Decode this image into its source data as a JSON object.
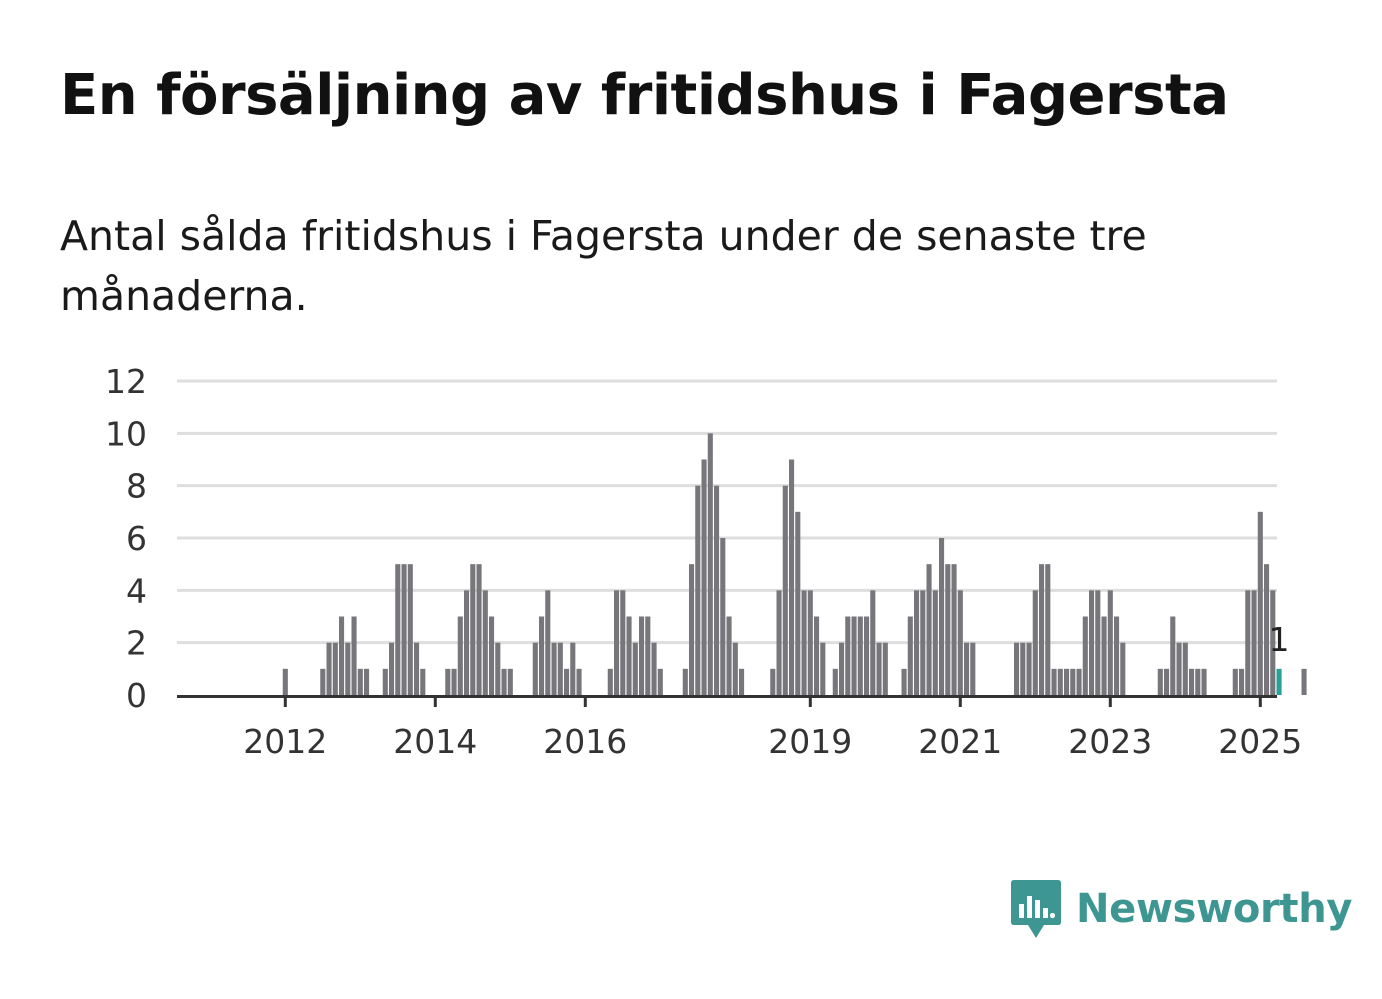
{
  "title": "En försäljning av fritidshus i Fagersta",
  "subtitle": "Antal sålda fritidshus i Fagersta under de senaste tre månaderna.",
  "logo": {
    "text": "Newsworthy",
    "icon": "newsworthy-bar-chart-icon"
  },
  "colors": {
    "bar": "#77767b",
    "highlight": "#2aa197",
    "grid": "#dedede",
    "axis": "#333333",
    "brand": "#3d9691"
  },
  "chart_data": {
    "type": "bar",
    "title": "",
    "xlabel": "",
    "ylabel": "",
    "ylim": [
      0,
      12
    ],
    "yticks": [
      0,
      2,
      4,
      6,
      8,
      10,
      12
    ],
    "grid": true,
    "x_tick_labels": [
      {
        "label": "2012",
        "month": "2012-01"
      },
      {
        "label": "2014",
        "month": "2014-01"
      },
      {
        "label": "2016",
        "month": "2016-01"
      },
      {
        "label": "2019",
        "month": "2019-01"
      },
      {
        "label": "2021",
        "month": "2021-01"
      },
      {
        "label": "2023",
        "month": "2023-01"
      },
      {
        "label": "2025",
        "month": "2025-01"
      }
    ],
    "start_month": "2011-04",
    "values": [
      0,
      0,
      0,
      0,
      0,
      0,
      0,
      0,
      0,
      1,
      0,
      0,
      0,
      0,
      0,
      1,
      2,
      2,
      3,
      2,
      3,
      1,
      1,
      0,
      0,
      1,
      2,
      5,
      5,
      5,
      2,
      1,
      0,
      0,
      0,
      1,
      1,
      3,
      4,
      5,
      5,
      4,
      3,
      2,
      1,
      1,
      0,
      0,
      0,
      2,
      3,
      4,
      2,
      2,
      1,
      2,
      1,
      0,
      0,
      0,
      0,
      1,
      4,
      4,
      3,
      2,
      3,
      3,
      2,
      1,
      0,
      0,
      0,
      1,
      5,
      8,
      9,
      10,
      8,
      6,
      3,
      2,
      1,
      0,
      0,
      0,
      0,
      1,
      4,
      8,
      9,
      7,
      4,
      4,
      3,
      2,
      0,
      1,
      2,
      3,
      3,
      3,
      3,
      4,
      2,
      2,
      0,
      0,
      1,
      3,
      4,
      4,
      5,
      4,
      6,
      5,
      5,
      4,
      2,
      2,
      0,
      0,
      0,
      0,
      0,
      0,
      2,
      2,
      2,
      4,
      5,
      5,
      1,
      1,
      1,
      1,
      1,
      3,
      4,
      4,
      3,
      4,
      3,
      2,
      0,
      0,
      0,
      0,
      0,
      1,
      1,
      3,
      2,
      2,
      1,
      1,
      1,
      0,
      0,
      0,
      0,
      1,
      1,
      4,
      4,
      7,
      5,
      4,
      1,
      0,
      0,
      0,
      1
    ],
    "highlight": {
      "month": "2025-04",
      "value": 1,
      "label": "1"
    }
  }
}
